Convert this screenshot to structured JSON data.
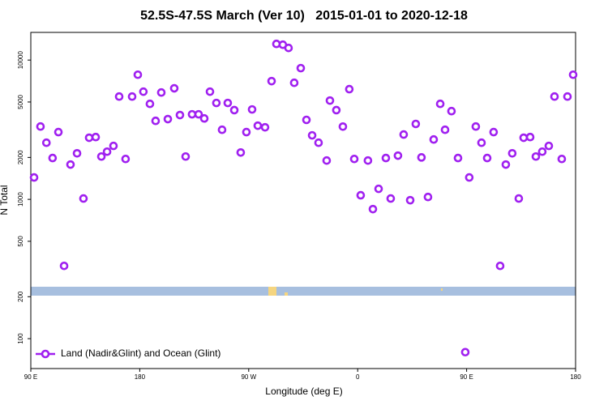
{
  "chart_data": {
    "type": "scatter",
    "title": "52.5S-47.5S March (Ver 10)   2015-01-01 to 2020-12-18",
    "x_label": "Longitude (deg E)",
    "y_label": "N Total",
    "yscale": "log",
    "xlim": [
      90,
      540
    ],
    "xticks": [
      {
        "value": 90,
        "label": "90 E"
      },
      180,
      {
        "value": 270,
        "label": "90 W"
      },
      {
        "value": 360,
        "label": "0"
      },
      {
        "value": 450,
        "label": "90 E"
      },
      {
        "value": 540,
        "label": "180"
      }
    ],
    "ylim": [
      61,
      15800
    ],
    "yticks": [
      100,
      200,
      500,
      1000,
      2000,
      5000,
      10000
    ],
    "legend_position": "lower left",
    "series": [
      {
        "name": "Land (Nadir&Glint) and Ocean (Glint)",
        "color": "#a020f0",
        "x": [
          92.7,
          98,
          102.9,
          108,
          112.8,
          117.5,
          122.8,
          128.2,
          133.5,
          138.2,
          143.6,
          148.3,
          153,
          158.3,
          163,
          168.3,
          173.7,
          178.4,
          183,
          188.4,
          193.1,
          197.8,
          203.2,
          208.5,
          213.2,
          217.9,
          223.2,
          228.6,
          233.3,
          238,
          243.3,
          248,
          252.7,
          258.1,
          263.4,
          268.1,
          272.8,
          277.5,
          283.5,
          288.9,
          292.9,
          298.2,
          302.9,
          307.6,
          313,
          317.7,
          322.4,
          327.7,
          334.4,
          337.1,
          342.4,
          347.8,
          353.1,
          357.2,
          362.5,
          368.5,
          372.6,
          377.3,
          383.3,
          387.3,
          393.3,
          398,
          403.4,
          408,
          412.7,
          418.1,
          422.8,
          428.2,
          432.2,
          437.5,
          442.9,
          448.9,
          452.2,
          457.6,
          462.3,
          467,
          472.3,
          477.7,
          482.4,
          487.7,
          493.1,
          497.1,
          502.5,
          507.2,
          512.5,
          517.9,
          522.6,
          528.6,
          533.3,
          538
        ],
        "values": [
          1436,
          3334,
          2550,
          1980,
          3040,
          333,
          1778,
          2140,
          1014,
          2770,
          2800,
          2030,
          2200,
          2420,
          5470,
          1950,
          5470,
          7850,
          5930,
          4850,
          3660,
          5850,
          3770,
          6270,
          4030,
          2030,
          4080,
          4080,
          3810,
          5930,
          4920,
          3160,
          4920,
          4370,
          2170,
          3040,
          4420,
          3380,
          3290,
          7060,
          13060,
          12890,
          12220,
          6870,
          8750,
          3720,
          2880,
          2550,
          1900,
          5120,
          4370,
          3330,
          6180,
          1950,
          1070,
          1900,
          851,
          1190,
          1980,
          1014,
          2060,
          2920,
          986,
          3480,
          2000,
          1040,
          2690,
          4850,
          3160,
          4300,
          1980,
          80,
          1436,
          3334,
          2550,
          1980,
          3040,
          333,
          1778,
          2140,
          1014,
          2770,
          2800,
          2030,
          2200,
          2420,
          5470,
          1950,
          5470,
          7850
        ]
      }
    ]
  }
}
